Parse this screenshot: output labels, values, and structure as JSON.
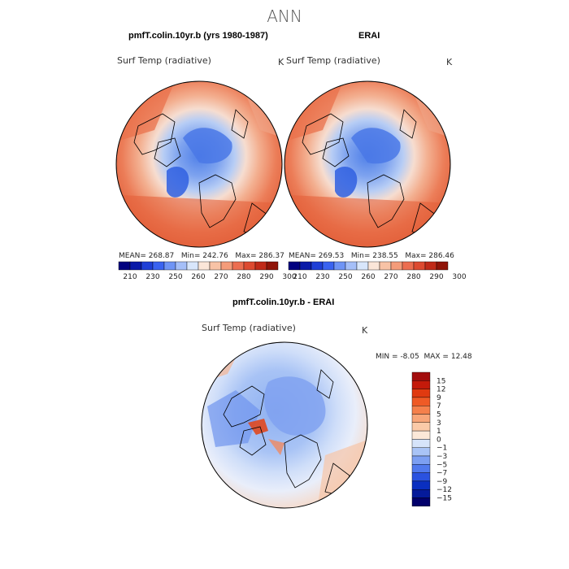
{
  "title": "ANN",
  "panels": [
    {
      "title": "pmfT.colin.10yr.b (yrs 1980-1987)",
      "variable": "Surf Temp (radiative)",
      "units": "K",
      "stats": {
        "mean_label": "MEAN=",
        "mean": "268.87",
        "min_label": "Min=",
        "min": "242.76",
        "max_label": "Max=",
        "max": "286.37"
      }
    },
    {
      "title": "ERAI",
      "variable": "Surf Temp (radiative)",
      "units": "K",
      "stats": {
        "mean_label": "MEAN=",
        "mean": "269.53",
        "min_label": "Min=",
        "min": "238.55",
        "max_label": "Max=",
        "max": "286.46"
      }
    },
    {
      "title": "pmfT.colin.10yr.b - ERAI",
      "variable": "Surf Temp (radiative)",
      "units": "K",
      "stats": {
        "min_label": "MIN =",
        "min": "-8.05",
        "max_label": "MAX =",
        "max": "12.48"
      }
    }
  ],
  "abs_colorbar": {
    "labels": [
      "210",
      "230",
      "250",
      "260",
      "270",
      "280",
      "290",
      "300"
    ],
    "colors": [
      "#00007f",
      "#0a1aa8",
      "#1f3fd6",
      "#3a63f0",
      "#6f94f5",
      "#a5bff8",
      "#d8e6fb",
      "#fbe6d8",
      "#f8c3a6",
      "#f49c7a",
      "#ec6e50",
      "#dd4a30",
      "#c02a18",
      "#8f1408"
    ]
  },
  "diff_colorbar": {
    "labels": [
      "15",
      "12",
      "9",
      "7",
      "5",
      "3",
      "1",
      "0",
      "−1",
      "−3",
      "−5",
      "−7",
      "−9",
      "−12",
      "−15"
    ],
    "colors": [
      "#a30d0d",
      "#c41a0a",
      "#e03a10",
      "#ef5a25",
      "#f5804b",
      "#f8a679",
      "#fbcaa8",
      "#fbe8d8",
      "#d6e4fa",
      "#a9c4f6",
      "#7c9ff2",
      "#5079ee",
      "#2a52e0",
      "#0a2fc0",
      "#051a9a",
      "#02006b"
    ]
  }
}
